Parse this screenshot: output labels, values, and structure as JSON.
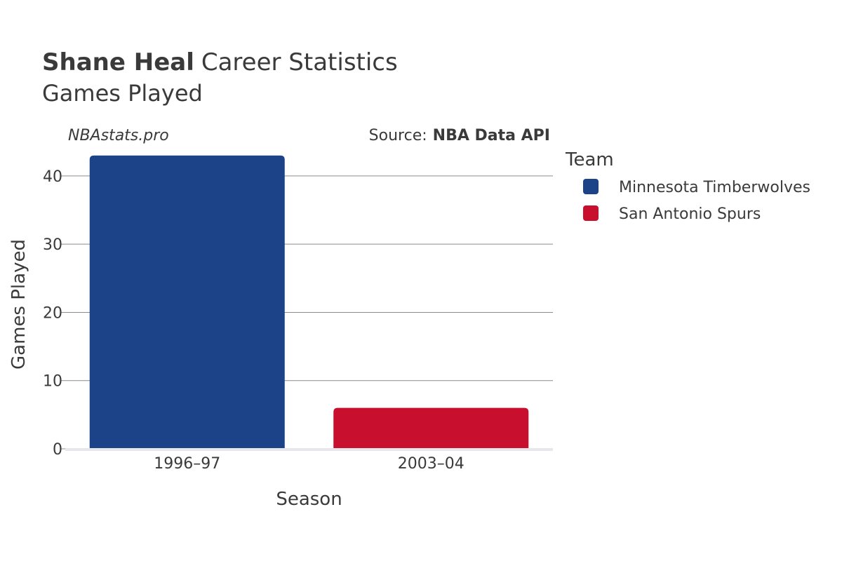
{
  "header": {
    "title_bold": "Shane Heal",
    "title_rest": "Career Statistics",
    "subtitle": "Games Played",
    "credit": "NBAstats.pro",
    "source_prefix": "Source:",
    "source_name": "NBA Data API"
  },
  "colors": {
    "minnesota": "#1c4287",
    "san_antonio": "#c8102e"
  },
  "chart_data": {
    "type": "bar",
    "categories": [
      "1996–97",
      "2003–04"
    ],
    "series": [
      {
        "name": "Minnesota Timberwolves",
        "values": [
          43,
          null
        ],
        "color": "#1c4287"
      },
      {
        "name": "San Antonio Spurs",
        "values": [
          null,
          6
        ],
        "color": "#c8102e"
      }
    ],
    "xlabel": "Season",
    "ylabel": "Games Played",
    "ylim": [
      0,
      44
    ],
    "yticks": [
      0,
      10,
      20,
      30,
      40
    ],
    "ytick_labels": [
      "0",
      "10",
      "20",
      "30",
      "40"
    ],
    "grid": true,
    "legend": {
      "title": "Team",
      "placement": "right",
      "entries": [
        "Minnesota Timberwolves",
        "San Antonio Spurs"
      ]
    }
  }
}
